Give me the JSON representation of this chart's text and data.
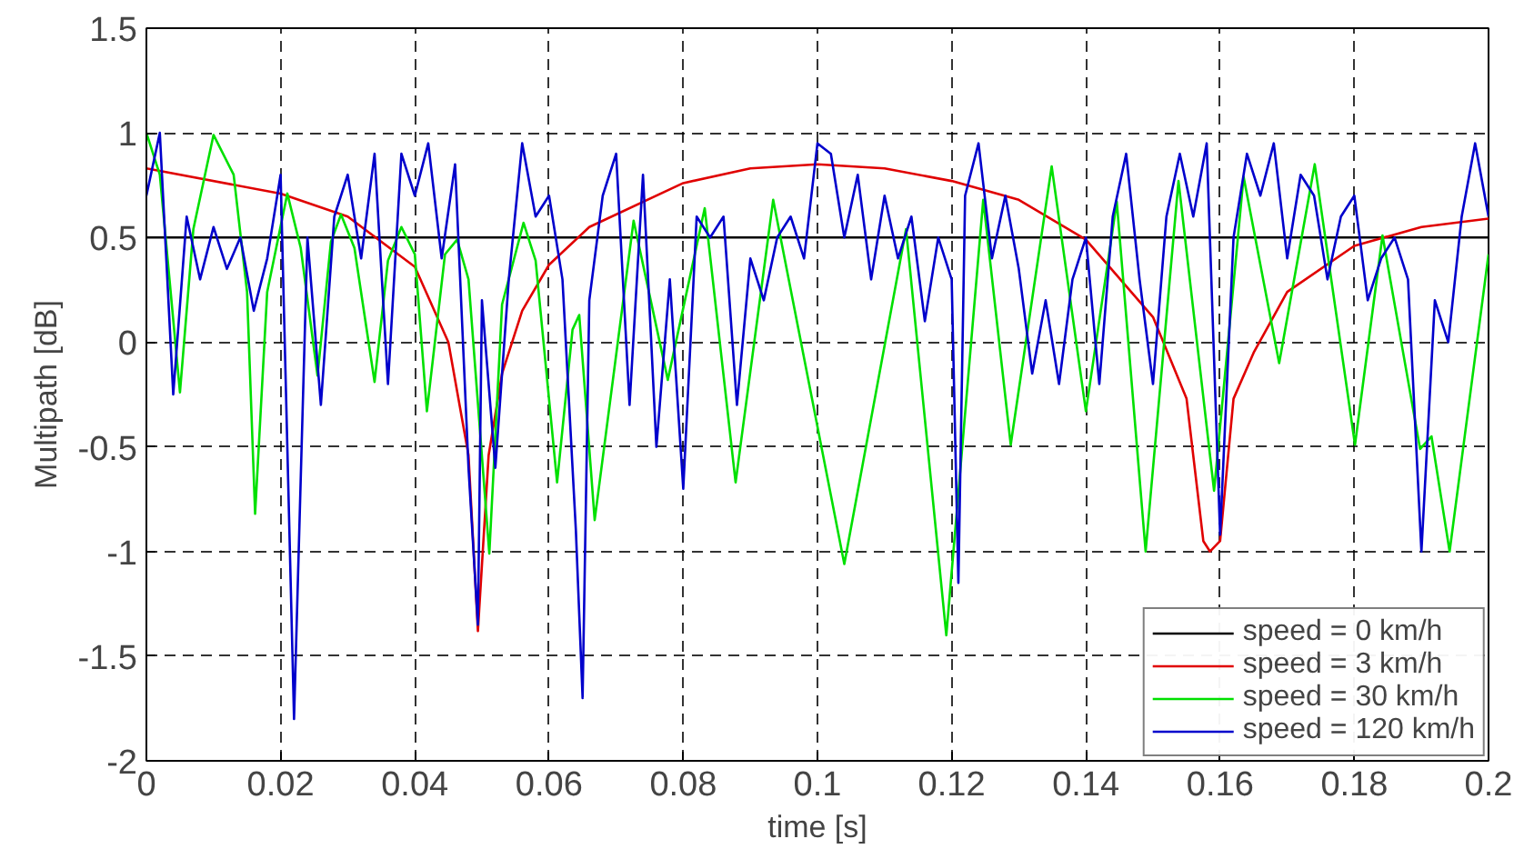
{
  "chart_data": {
    "type": "line",
    "xlabel": "time [s]",
    "ylabel": "Multipath [dB]",
    "xlim": [
      0,
      0.2
    ],
    "ylim": [
      -2,
      1.5
    ],
    "xticks": [
      0,
      0.02,
      0.04,
      0.06,
      0.08,
      0.1,
      0.12,
      0.14,
      0.16,
      0.18,
      0.2
    ],
    "yticks": [
      -2,
      -1.5,
      -1,
      -0.5,
      0,
      0.5,
      1,
      1.5
    ],
    "grid": true,
    "legend": "bottom right",
    "line_style": "solid",
    "marker": "none",
    "series": [
      {
        "name": "speed = 0 km/h",
        "color": "#000000",
        "x": [
          0,
          0.2
        ],
        "values": [
          0.5,
          0.5
        ]
      },
      {
        "name": "speed = 3 km/h",
        "color": "#e00000",
        "x": [
          0,
          0.02,
          0.03,
          0.04,
          0.045,
          0.048,
          0.0494,
          0.051,
          0.053,
          0.056,
          0.06,
          0.066,
          0.08,
          0.09,
          0.1,
          0.11,
          0.12,
          0.13,
          0.14,
          0.15,
          0.155,
          0.1575,
          0.1585,
          0.16,
          0.162,
          0.165,
          0.17,
          0.18,
          0.19,
          0.2
        ],
        "values": [
          0.83,
          0.71,
          0.6,
          0.36,
          0,
          -0.54,
          -1.38,
          -0.54,
          -0.15,
          0.15,
          0.37,
          0.55,
          0.76,
          0.83,
          0.85,
          0.83,
          0.77,
          0.68,
          0.49,
          0.12,
          -0.27,
          -0.95,
          -1.0,
          -0.95,
          -0.27,
          -0.05,
          0.24,
          0.46,
          0.55,
          0.59
        ]
      },
      {
        "name": "speed = 30 km/h",
        "color": "#00e000",
        "x": [
          0,
          0.002,
          0.005,
          0.007,
          0.01,
          0.013,
          0.015,
          0.0162,
          0.018,
          0.021,
          0.023,
          0.0255,
          0.0275,
          0.029,
          0.031,
          0.034,
          0.036,
          0.038,
          0.04,
          0.0418,
          0.0445,
          0.0463,
          0.048,
          0.0511,
          0.053,
          0.0562,
          0.058,
          0.0612,
          0.0635,
          0.0645,
          0.0668,
          0.0726,
          0.0777,
          0.0832,
          0.0878,
          0.0934,
          0.104,
          0.1132,
          0.1192,
          0.1247,
          0.1288,
          0.1349,
          0.14,
          0.1446,
          0.1489,
          0.1538,
          0.1591,
          0.1635,
          0.1688,
          0.1741,
          0.1801,
          0.1842,
          0.1898,
          0.1915,
          0.1942,
          0.2
        ],
        "values": [
          1.0,
          0.8,
          -0.24,
          0.54,
          0.99,
          0.8,
          0.24,
          -0.82,
          0.24,
          0.71,
          0.45,
          -0.16,
          0.48,
          0.61,
          0.45,
          -0.19,
          0.39,
          0.55,
          0.42,
          -0.33,
          0.42,
          0.49,
          0.3,
          -1.01,
          0.18,
          0.57,
          0.39,
          -0.67,
          0.06,
          0.13,
          -0.85,
          0.58,
          -0.18,
          0.64,
          -0.67,
          0.68,
          -1.06,
          0.54,
          -1.4,
          0.68,
          -0.49,
          0.84,
          -0.33,
          0.67,
          -1.0,
          0.77,
          -0.71,
          0.79,
          -0.1,
          0.85,
          -0.49,
          0.51,
          -0.51,
          -0.45,
          -1.0,
          0.42
        ]
      },
      {
        "name": "speed = 120 km/h",
        "color": "#0000cc",
        "x": [
          0,
          0.002,
          0.004,
          0.006,
          0.008,
          0.01,
          0.012,
          0.014,
          0.016,
          0.018,
          0.02,
          0.022,
          0.024,
          0.026,
          0.028,
          0.03,
          0.032,
          0.034,
          0.036,
          0.038,
          0.04,
          0.042,
          0.044,
          0.046,
          0.048,
          0.0494,
          0.05,
          0.052,
          0.054,
          0.056,
          0.058,
          0.06,
          0.062,
          0.064,
          0.065,
          0.066,
          0.068,
          0.07,
          0.072,
          0.074,
          0.076,
          0.078,
          0.08,
          0.082,
          0.084,
          0.086,
          0.088,
          0.09,
          0.092,
          0.094,
          0.096,
          0.098,
          0.1,
          0.102,
          0.104,
          0.106,
          0.108,
          0.11,
          0.112,
          0.114,
          0.116,
          0.118,
          0.12,
          0.121,
          0.122,
          0.124,
          0.126,
          0.128,
          0.13,
          0.132,
          0.134,
          0.136,
          0.138,
          0.14,
          0.142,
          0.144,
          0.146,
          0.148,
          0.15,
          0.152,
          0.154,
          0.156,
          0.158,
          0.16,
          0.162,
          0.164,
          0.166,
          0.168,
          0.17,
          0.172,
          0.174,
          0.176,
          0.178,
          0.18,
          0.182,
          0.184,
          0.186,
          0.188,
          0.19,
          0.192,
          0.194,
          0.196,
          0.198,
          0.2
        ],
        "values": [
          0.7,
          1.0,
          -0.25,
          0.6,
          0.3,
          0.55,
          0.35,
          0.5,
          0.15,
          0.4,
          0.8,
          -1.8,
          0.5,
          -0.3,
          0.6,
          0.8,
          0.4,
          0.9,
          -0.2,
          0.9,
          0.7,
          0.95,
          0.4,
          0.85,
          -0.6,
          -1.35,
          0.2,
          -0.6,
          0.3,
          0.95,
          0.6,
          0.7,
          0.3,
          -0.9,
          -1.7,
          0.2,
          0.7,
          0.9,
          -0.3,
          0.8,
          -0.5,
          0.3,
          -0.7,
          0.6,
          0.5,
          0.6,
          -0.3,
          0.4,
          0.2,
          0.5,
          0.6,
          0.4,
          0.95,
          0.9,
          0.5,
          0.8,
          0.3,
          0.7,
          0.4,
          0.6,
          0.1,
          0.5,
          0.3,
          -1.15,
          0.7,
          0.95,
          0.4,
          0.7,
          0.35,
          -0.15,
          0.2,
          -0.2,
          0.3,
          0.5,
          -0.2,
          0.6,
          0.9,
          0.3,
          -0.2,
          0.6,
          0.9,
          0.6,
          0.95,
          -0.92,
          0.5,
          0.9,
          0.7,
          0.95,
          0.4,
          0.8,
          0.7,
          0.3,
          0.6,
          0.7,
          0.2,
          0.4,
          0.5,
          0.3,
          -1.0,
          0.2,
          0.0,
          0.6,
          0.95,
          0.6
        ]
      }
    ]
  }
}
